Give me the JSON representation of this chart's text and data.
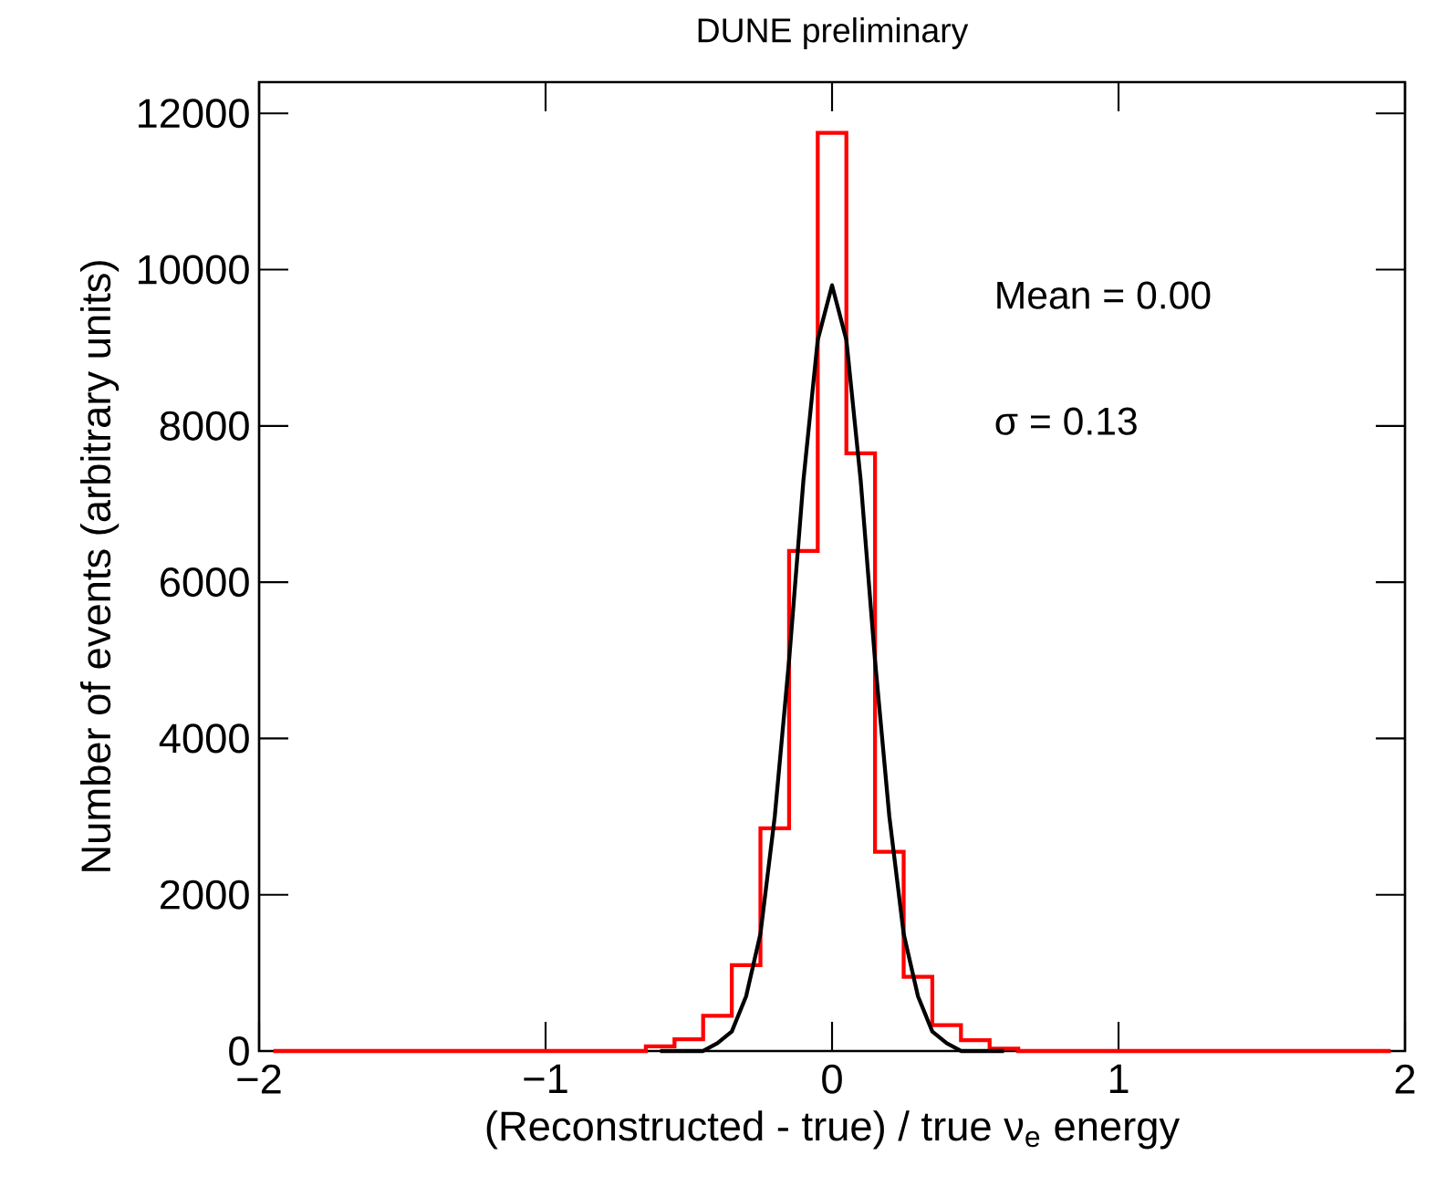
{
  "chart_data": {
    "type": "histogram",
    "title": "DUNE preliminary",
    "xlabel": "(Reconstructed - true) / true ν$_{e}$ energy",
    "ylabel": "Number of events (arbitrary units)",
    "annotations": [
      "Mean = 0.00",
      "σ = 0.13"
    ],
    "xlim": [
      -2,
      2
    ],
    "ylim": [
      0,
      12400
    ],
    "xticks": [
      {
        "value": -2,
        "label": "−2"
      },
      {
        "value": -1,
        "label": "−1"
      },
      0,
      1,
      2
    ],
    "yticks": [
      0,
      2000,
      4000,
      6000,
      8000,
      10000,
      12000
    ],
    "color": "#ff0000",
    "bins": [
      -1.95,
      -1.85,
      -1.75,
      -1.65,
      -1.55,
      -1.45,
      -1.35,
      -1.25,
      -1.15,
      -1.05,
      -0.95,
      -0.85,
      -0.75,
      -0.65,
      -0.55,
      -0.45,
      -0.35,
      -0.25,
      -0.15,
      -0.05,
      0.05,
      0.15,
      0.25,
      0.35,
      0.45,
      0.55,
      0.65,
      0.75,
      0.85,
      0.95,
      1.05,
      1.15,
      1.25,
      1.35,
      1.45,
      1.55,
      1.65,
      1.75,
      1.85,
      1.95
    ],
    "values": [
      0,
      0,
      0,
      0,
      0,
      0,
      0,
      0,
      0,
      0,
      0,
      0,
      0,
      60,
      150,
      450,
      1100,
      2850,
      6400,
      11750,
      7650,
      2550,
      950,
      330,
      140,
      30,
      0,
      0,
      0,
      0,
      0,
      0,
      0,
      0,
      0,
      0,
      0,
      0,
      0
    ],
    "series": [
      {
        "type": "line",
        "color": "#000000",
        "x": [
          -0.6,
          -0.5,
          -0.45,
          -0.4,
          -0.35,
          -0.3,
          -0.25,
          -0.2,
          -0.15,
          -0.1,
          -0.05,
          0,
          0.05,
          0.1,
          0.15,
          0.2,
          0.25,
          0.3,
          0.35,
          0.4,
          0.45,
          0.5,
          0.6
        ],
        "values": [
          0,
          0,
          0,
          100,
          250,
          700,
          1500,
          3000,
          5000,
          7300,
          9100,
          9800,
          9100,
          7300,
          5000,
          3000,
          1500,
          700,
          250,
          100,
          0,
          0,
          0
        ]
      }
    ]
  }
}
